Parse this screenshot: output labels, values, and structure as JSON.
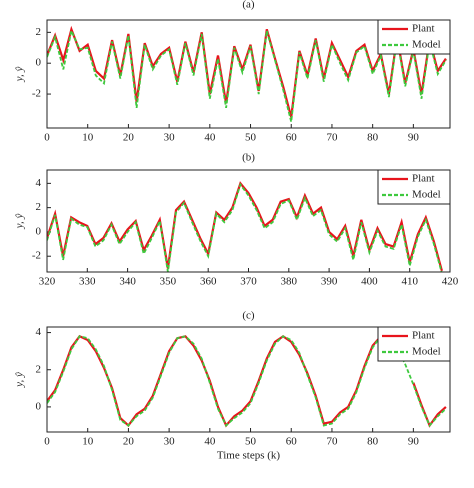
{
  "chart_data": [
    {
      "type": "line",
      "title": "(a)",
      "ylabel": "y, ŷ",
      "legend": "upper right",
      "x": [
        0,
        2,
        4,
        6,
        8,
        10,
        12,
        14,
        16,
        18,
        20,
        22,
        24,
        26,
        28,
        30,
        32,
        34,
        36,
        38,
        40,
        42,
        44,
        46,
        48,
        50,
        52,
        54,
        56,
        58,
        60,
        62,
        64,
        66,
        68,
        70,
        72,
        74,
        76,
        78,
        80,
        82,
        84,
        86,
        88,
        90,
        92,
        94,
        96,
        98
      ],
      "series": [
        {
          "name": "Plant",
          "color": "#e8141c",
          "dash": false,
          "values": [
            0.5,
            1.8,
            0.2,
            2.2,
            0.8,
            1.2,
            -0.5,
            -1.0,
            1.5,
            -0.8,
            1.9,
            -2.5,
            1.3,
            -0.2,
            0.6,
            1.0,
            -1.2,
            1.4,
            -0.6,
            2.0,
            -2.0,
            0.5,
            -2.6,
            1.1,
            -0.4,
            1.2,
            -1.8,
            2.2,
            0.3,
            -1.5,
            -3.5,
            0.8,
            -0.8,
            1.6,
            -1.0,
            1.3,
            0.2,
            -0.9,
            0.8,
            1.2,
            -0.5,
            0.6,
            -2.0,
            1.7,
            -1.3,
            0.9,
            -2.0,
            1.5,
            -0.5,
            0.3
          ]
        },
        {
          "name": "Model",
          "color": "#3ec93e",
          "dash": true,
          "values": [
            0.4,
            1.7,
            -0.4,
            2.1,
            0.9,
            1.0,
            -0.8,
            -1.3,
            1.4,
            -1.0,
            1.8,
            -2.9,
            1.2,
            -0.4,
            0.5,
            0.9,
            -1.4,
            1.3,
            -0.8,
            1.9,
            -2.3,
            0.3,
            -2.9,
            1.0,
            -0.6,
            1.1,
            -2.0,
            2.1,
            0.2,
            -1.7,
            -3.8,
            0.7,
            -1.0,
            1.5,
            -1.2,
            1.2,
            0.0,
            -1.1,
            0.7,
            1.1,
            -0.7,
            0.5,
            -2.2,
            1.6,
            -1.5,
            0.8,
            -2.3,
            1.4,
            -0.7,
            0.2
          ]
        }
      ],
      "xlim": [
        0,
        99
      ],
      "xticks": [
        0,
        10,
        20,
        30,
        40,
        50,
        60,
        70,
        80,
        90
      ],
      "ylim": [
        -4.2,
        2.8
      ],
      "yticks": [
        -2,
        0,
        2
      ]
    },
    {
      "type": "line",
      "title": "(b)",
      "ylabel": "y, ŷ",
      "legend": "upper right",
      "x": [
        320,
        322,
        324,
        326,
        328,
        330,
        332,
        334,
        336,
        338,
        340,
        342,
        344,
        346,
        348,
        350,
        352,
        354,
        356,
        358,
        360,
        362,
        364,
        366,
        368,
        370,
        372,
        374,
        376,
        378,
        380,
        382,
        384,
        386,
        388,
        390,
        392,
        394,
        396,
        398,
        400,
        402,
        404,
        406,
        408,
        410,
        412,
        414,
        416,
        418
      ],
      "series": [
        {
          "name": "Plant",
          "color": "#e8141c",
          "dash": false,
          "values": [
            -0.5,
            1.5,
            -2.0,
            1.2,
            0.8,
            0.5,
            -1.0,
            -0.5,
            0.7,
            -0.8,
            0.2,
            0.9,
            -1.5,
            -0.3,
            1.0,
            -3.0,
            1.8,
            2.5,
            1.0,
            -0.5,
            -1.8,
            1.6,
            1.0,
            2.0,
            4.0,
            3.2,
            2.0,
            0.5,
            1.0,
            2.5,
            2.7,
            1.2,
            3.0,
            1.5,
            2.0,
            0.0,
            -0.6,
            0.5,
            -2.0,
            1.0,
            -1.5,
            0.3,
            -1.0,
            -1.2,
            0.8,
            -2.5,
            -0.2,
            1.2,
            -0.8,
            -3.2
          ]
        },
        {
          "name": "Model",
          "color": "#3ec93e",
          "dash": true,
          "values": [
            -0.7,
            1.4,
            -2.3,
            1.1,
            0.6,
            0.4,
            -1.2,
            -0.7,
            0.6,
            -1.0,
            0.0,
            0.8,
            -1.8,
            -0.5,
            0.9,
            -3.3,
            1.6,
            2.4,
            0.8,
            -0.7,
            -2.0,
            1.5,
            0.8,
            1.8,
            3.9,
            3.0,
            1.8,
            0.3,
            0.8,
            2.3,
            2.6,
            1.0,
            2.8,
            1.3,
            1.8,
            -0.2,
            -0.8,
            0.3,
            -2.3,
            0.8,
            -1.7,
            0.1,
            -1.2,
            -1.4,
            0.6,
            -2.8,
            -0.4,
            1.0,
            -1.0,
            -3.4
          ]
        }
      ],
      "xlim": [
        320,
        420
      ],
      "xticks": [
        320,
        330,
        340,
        350,
        360,
        370,
        380,
        390,
        400,
        410,
        420
      ],
      "ylim": [
        -3.3,
        5.1
      ],
      "yticks": [
        -2,
        0,
        2,
        4
      ]
    },
    {
      "type": "line",
      "title": "(c)",
      "ylabel": "y, ŷ",
      "xlabel": "Time steps (k)",
      "legend": "upper right",
      "x": [
        0,
        2,
        4,
        6,
        8,
        10,
        12,
        14,
        16,
        18,
        20,
        22,
        24,
        26,
        28,
        30,
        32,
        34,
        36,
        38,
        40,
        42,
        44,
        46,
        48,
        50,
        52,
        54,
        56,
        58,
        60,
        62,
        64,
        66,
        68,
        70,
        72,
        74,
        76,
        78,
        80,
        82,
        84,
        86,
        88,
        90,
        92,
        94,
        96,
        98
      ],
      "series": [
        {
          "name": "Plant",
          "color": "#e8141c",
          "dash": false,
          "values": [
            0.3,
            0.9,
            2.0,
            3.2,
            3.8,
            3.6,
            3.0,
            2.1,
            1.0,
            -0.6,
            -1.0,
            -0.4,
            -0.1,
            0.6,
            1.8,
            3.0,
            3.7,
            3.8,
            3.3,
            2.5,
            1.4,
            0.0,
            -1.0,
            -0.5,
            -0.2,
            0.3,
            1.4,
            2.6,
            3.5,
            3.8,
            3.5,
            2.8,
            1.8,
            0.6,
            -0.9,
            -0.8,
            -0.3,
            0.0,
            0.9,
            2.2,
            3.3,
            3.8,
            3.7,
            3.1,
            null,
            1.3,
            0.1,
            -1.0,
            -0.4,
            0.0
          ]
        },
        {
          "name": "Model",
          "color": "#3ec93e",
          "dash": true,
          "values": [
            0.2,
            0.8,
            1.9,
            3.1,
            3.8,
            3.7,
            3.1,
            2.2,
            0.9,
            -0.7,
            -1.0,
            -0.5,
            -0.2,
            0.5,
            1.7,
            2.9,
            3.7,
            3.8,
            3.4,
            2.6,
            1.3,
            -0.1,
            -1.0,
            -0.6,
            -0.3,
            0.2,
            1.3,
            2.5,
            3.4,
            3.8,
            3.6,
            2.9,
            1.7,
            0.5,
            -1.0,
            -0.9,
            -0.4,
            -0.1,
            0.8,
            2.1,
            3.2,
            3.8,
            3.7,
            3.2,
            2.3,
            1.2,
            0.0,
            -1.0,
            -0.5,
            -0.1
          ]
        }
      ],
      "xlim": [
        0,
        99
      ],
      "xticks": [
        0,
        10,
        20,
        30,
        40,
        50,
        60,
        70,
        80,
        90
      ],
      "ylim": [
        -1.35,
        4.3
      ],
      "yticks": [
        0,
        2,
        4
      ]
    }
  ]
}
